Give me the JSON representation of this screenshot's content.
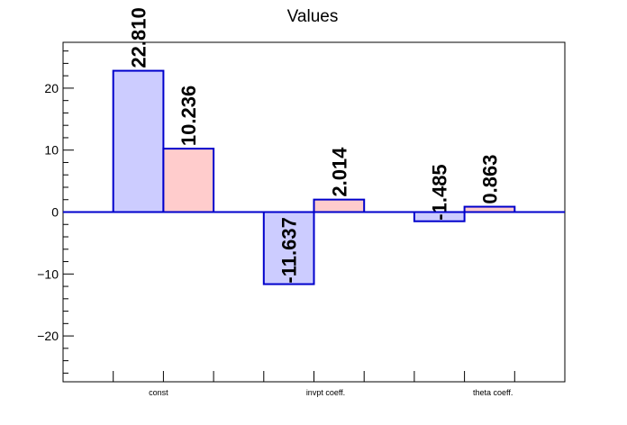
{
  "chart_data": {
    "type": "bar",
    "title": "Values",
    "categories": [
      "const",
      "invpt coeff.",
      "theta coeff."
    ],
    "series": [
      {
        "values": [
          22.81,
          -11.637,
          -1.485
        ],
        "labels": [
          "22.810",
          "-11.637",
          "-1.485"
        ]
      },
      {
        "values": [
          10.236,
          2.014,
          0.863
        ],
        "labels": [
          "10.236",
          "2.014",
          "0.863"
        ]
      }
    ],
    "ylim": [
      -27.4,
      27.4
    ],
    "yticks": [
      -20,
      -10,
      0,
      10,
      20
    ],
    "ytick_labels": [
      "−20",
      "−10",
      "0",
      "10",
      "20"
    ],
    "grid": false,
    "colors": {
      "series_fill": [
        "#ccccff",
        "#ffcccc"
      ],
      "bar_edge": "#0000cc",
      "zero_line": "#0000cc",
      "axis": "#000000"
    }
  }
}
